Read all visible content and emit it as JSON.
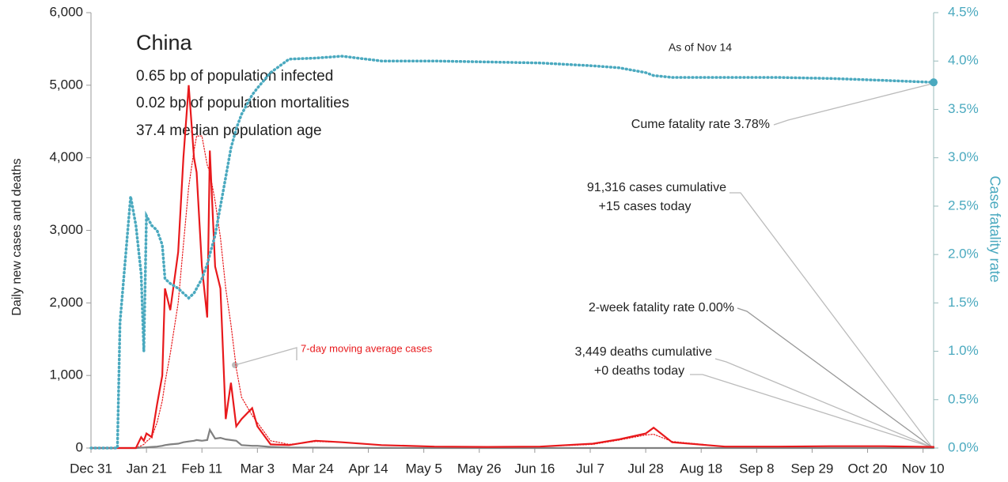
{
  "chart_data": {
    "type": "line",
    "title": "China",
    "subtitle_lines": [
      "0.65 bp of population infected",
      "0.02 bp of population mortalities",
      "37.4 median population age"
    ],
    "as_of": "As of Nov 14",
    "ylabel": "Daily new cases and deaths",
    "y2label": "Case fatality rate",
    "annotations": {
      "cume_fatality": "Cume fatality rate 3.78%",
      "cases_cumulative": "91,316 cases cumulative",
      "cases_today": "+15 cases today",
      "two_week_fatality": "2-week fatality rate 0.00%",
      "deaths_cumulative": "3,449 deaths cumulative",
      "deaths_today": "+0 deaths today"
    },
    "x": [
      0,
      5,
      10,
      11,
      15,
      17,
      19,
      20,
      21,
      23,
      25,
      27,
      28,
      30,
      33,
      35,
      37,
      39,
      40,
      42,
      44,
      45,
      47,
      49,
      51,
      53,
      55,
      57,
      61,
      63,
      68,
      75,
      85,
      95,
      110,
      130,
      150,
      170,
      190,
      200,
      210,
      213,
      220,
      240,
      260,
      280,
      300,
      319
    ],
    "series": [
      {
        "color": "#e8191c",
        "style": "solid",
        "values": [
          0,
          0,
          0,
          0,
          0,
          0,
          150,
          100,
          200,
          150,
          600,
          1000,
          2200,
          1900,
          2700,
          4000,
          5000,
          4000,
          3800,
          2500,
          1800,
          4100,
          2500,
          2200,
          400,
          900,
          300,
          400,
          550,
          300,
          50,
          40,
          100,
          80,
          40,
          20,
          15,
          20,
          60,
          120,
          200,
          280,
          80,
          20,
          20,
          25,
          25,
          15
        ]
      },
      {
        "name": "7-day moving average cases",
        "color": "#e8191c",
        "style": "dotted",
        "values": [
          0,
          0,
          0,
          0,
          0,
          0,
          30,
          50,
          90,
          150,
          350,
          650,
          900,
          1300,
          2000,
          2800,
          3600,
          4100,
          4300,
          4300,
          3900,
          3800,
          3400,
          2900,
          2200,
          1700,
          1100,
          700,
          450,
          350,
          100,
          50,
          90,
          80,
          40,
          20,
          15,
          20,
          50,
          110,
          180,
          190,
          90,
          20,
          20,
          25,
          25,
          15
        ]
      },
      {
        "color": "#808080",
        "style": "solid",
        "values": [
          0,
          0,
          0,
          0,
          0,
          0,
          5,
          5,
          10,
          15,
          20,
          30,
          40,
          50,
          60,
          80,
          90,
          100,
          110,
          100,
          110,
          250,
          130,
          140,
          120,
          110,
          100,
          40,
          30,
          30,
          15,
          5,
          5,
          3,
          1,
          0,
          0,
          0,
          0,
          0,
          0,
          0,
          0,
          0,
          0,
          0,
          0,
          0
        ]
      },
      {
        "color": "#4aa9bf",
        "style": "dotted",
        "axis": "y2",
        "values": [
          0,
          0,
          0,
          1.3,
          2.6,
          2.3,
          1.8,
          1.0,
          2.4,
          2.3,
          2.25,
          2.1,
          1.75,
          1.7,
          1.65,
          1.6,
          1.55,
          1.6,
          1.65,
          1.75,
          1.9,
          2.0,
          2.2,
          2.5,
          2.8,
          3.1,
          3.3,
          3.45,
          3.65,
          3.72,
          3.88,
          4.02,
          4.03,
          4.05,
          4.0,
          4.0,
          3.99,
          3.98,
          3.95,
          3.93,
          3.88,
          3.85,
          3.83,
          3.83,
          3.83,
          3.82,
          3.8,
          3.78
        ]
      }
    ],
    "xlim": [
      0,
      319
    ],
    "xticks": [
      {
        "value": 0,
        "label": "Dec 31"
      },
      {
        "value": 21,
        "label": "Jan 21"
      },
      {
        "value": 42,
        "label": "Feb 11"
      },
      {
        "value": 63,
        "label": "Mar 3"
      },
      {
        "value": 84,
        "label": "Mar 24"
      },
      {
        "value": 105,
        "label": "Apr 14"
      },
      {
        "value": 126,
        "label": "May 5"
      },
      {
        "value": 147,
        "label": "May 26"
      },
      {
        "value": 168,
        "label": "Jun 16"
      },
      {
        "value": 189,
        "label": "Jul 7"
      },
      {
        "value": 210,
        "label": "Jul 28"
      },
      {
        "value": 231,
        "label": "Aug 18"
      },
      {
        "value": 252,
        "label": "Sep 8"
      },
      {
        "value": 273,
        "label": "Sep 29"
      },
      {
        "value": 294,
        "label": "Oct 20"
      },
      {
        "value": 315,
        "label": "Nov 10"
      }
    ],
    "ylim": [
      0,
      6000
    ],
    "yticks": [
      0,
      {
        "value": 1000,
        "label": "1,000"
      },
      {
        "value": 2000,
        "label": "2,000"
      },
      {
        "value": 3000,
        "label": "3,000"
      },
      {
        "value": 4000,
        "label": "4,000"
      },
      {
        "value": 5000,
        "label": "5,000"
      },
      {
        "value": 6000,
        "label": "6,000"
      }
    ],
    "y2lim": [
      0,
      4.5
    ],
    "y2ticks": [
      {
        "value": 0,
        "label": "0.0%"
      },
      {
        "value": 0.5,
        "label": "0.5%"
      },
      {
        "value": 1,
        "label": "1.0%"
      },
      {
        "value": 1.5,
        "label": "1.5%"
      },
      {
        "value": 2,
        "label": "2.0%"
      },
      {
        "value": 2.5,
        "label": "2.5%"
      },
      {
        "value": 3,
        "label": "3.0%"
      },
      {
        "value": 3.5,
        "label": "3.5%"
      },
      {
        "value": 4,
        "label": "4.0%"
      },
      {
        "value": 4.5,
        "label": "4.5%"
      }
    ]
  }
}
